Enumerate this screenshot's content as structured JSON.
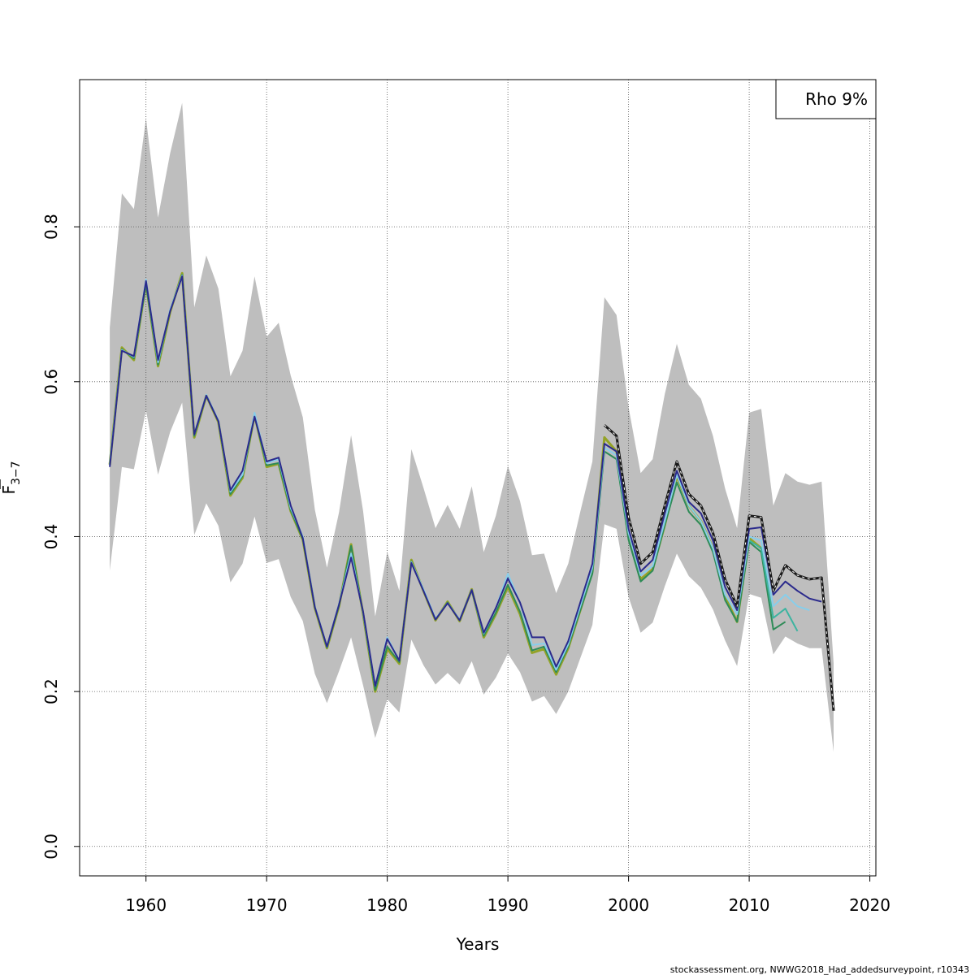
{
  "chart_data": {
    "type": "line",
    "xlabel": "Years",
    "ylabel_main": "F",
    "ylabel_sub": "3−7",
    "xlim": [
      1954.5,
      2020.5
    ],
    "ylim": [
      -0.038,
      0.99
    ],
    "xticks": [
      1960,
      1970,
      1980,
      1990,
      2000,
      2010,
      2020
    ],
    "yticks": [
      0.0,
      0.2,
      0.4,
      0.6,
      0.8
    ],
    "ytick_labels": [
      "0.0",
      "0.2",
      "0.4",
      "0.6",
      "0.8"
    ],
    "grid": true,
    "legend": {
      "placement": "top-right",
      "text": "Rho 9%"
    },
    "footer": "stockassessment.org, NWWG2018_Had_addedsurveypoint, r10343",
    "band": {
      "color": "#bebebe",
      "x": [
        1957,
        1958,
        1959,
        1960,
        1961,
        1962,
        1963,
        1964,
        1965,
        1966,
        1967,
        1968,
        1969,
        1970,
        1971,
        1972,
        1973,
        1974,
        1975,
        1976,
        1977,
        1978,
        1979,
        1980,
        1981,
        1982,
        1983,
        1984,
        1985,
        1986,
        1987,
        1988,
        1989,
        1990,
        1991,
        1992,
        1993,
        1994,
        1995,
        1996,
        1997,
        1998,
        1999,
        2000,
        2001,
        2002,
        2003,
        2004,
        2005,
        2006,
        2007,
        2008,
        2009,
        2010,
        2011,
        2012,
        2013,
        2014,
        2015,
        2016,
        2017
      ],
      "upper": [
        0.67,
        0.843,
        0.823,
        0.94,
        0.812,
        0.895,
        0.96,
        0.696,
        0.763,
        0.72,
        0.607,
        0.64,
        0.736,
        0.658,
        0.676,
        0.608,
        0.554,
        0.435,
        0.36,
        0.431,
        0.531,
        0.433,
        0.297,
        0.38,
        0.33,
        0.513,
        0.463,
        0.411,
        0.441,
        0.41,
        0.465,
        0.38,
        0.427,
        0.491,
        0.446,
        0.376,
        0.378,
        0.327,
        0.365,
        0.432,
        0.497,
        0.709,
        0.686,
        0.567,
        0.482,
        0.5,
        0.584,
        0.649,
        0.596,
        0.578,
        0.53,
        0.462,
        0.411,
        0.56,
        0.565,
        0.44,
        0.482,
        0.471,
        0.467,
        0.471,
        0.236
      ],
      "lower": [
        0.356,
        0.49,
        0.487,
        0.563,
        0.48,
        0.535,
        0.573,
        0.402,
        0.443,
        0.414,
        0.341,
        0.365,
        0.426,
        0.366,
        0.371,
        0.322,
        0.291,
        0.223,
        0.185,
        0.226,
        0.27,
        0.208,
        0.14,
        0.19,
        0.173,
        0.267,
        0.234,
        0.209,
        0.224,
        0.209,
        0.239,
        0.196,
        0.218,
        0.249,
        0.225,
        0.187,
        0.194,
        0.171,
        0.2,
        0.243,
        0.286,
        0.416,
        0.41,
        0.322,
        0.276,
        0.289,
        0.336,
        0.378,
        0.349,
        0.334,
        0.306,
        0.266,
        0.233,
        0.326,
        0.321,
        0.248,
        0.271,
        0.262,
        0.256,
        0.256,
        0.122
      ]
    },
    "series": [
      {
        "color": "#94a327",
        "width": 3,
        "dashed": false,
        "x": [
          1957,
          1958,
          1959,
          1960,
          1961,
          1962,
          1963,
          1964,
          1965,
          1966,
          1967,
          1968,
          1969,
          1970,
          1971,
          1972,
          1973,
          1974,
          1975,
          1976,
          1977,
          1978,
          1979,
          1980,
          1981,
          1982,
          1983,
          1984,
          1985,
          1986,
          1987,
          1988,
          1989,
          1990,
          1991,
          1992,
          1993,
          1994,
          1995,
          1996,
          1997,
          1998,
          1999,
          2000,
          2001,
          2002,
          2003,
          2004,
          2005,
          2006,
          2007,
          2008,
          2009,
          2010,
          2011
        ],
        "values": [
          0.493,
          0.644,
          0.628,
          0.727,
          0.62,
          0.69,
          0.74,
          0.528,
          0.582,
          0.548,
          0.453,
          0.476,
          0.557,
          0.49,
          0.494,
          0.433,
          0.396,
          0.308,
          0.256,
          0.31,
          0.39,
          0.3,
          0.2,
          0.255,
          0.236,
          0.37,
          0.33,
          0.292,
          0.316,
          0.291,
          0.332,
          0.27,
          0.3,
          0.335,
          0.3,
          0.25,
          0.255,
          0.222,
          0.256,
          0.305,
          0.355,
          0.528,
          0.51,
          0.4,
          0.345,
          0.358,
          0.415,
          0.478,
          0.44,
          0.42,
          0.385,
          0.322,
          0.29,
          0.398,
          0.385
        ]
      },
      {
        "color": "#2e8b57",
        "width": 2,
        "dashed": false,
        "x": [
          1957,
          1958,
          1959,
          1960,
          1961,
          1962,
          1963,
          1964,
          1965,
          1966,
          1967,
          1968,
          1969,
          1970,
          1971,
          1972,
          1973,
          1974,
          1975,
          1976,
          1977,
          1978,
          1979,
          1980,
          1981,
          1982,
          1983,
          1984,
          1985,
          1986,
          1987,
          1988,
          1989,
          1990,
          1991,
          1992,
          1993,
          1994,
          1995,
          1996,
          1997,
          1998,
          1999,
          2000,
          2001,
          2002,
          2003,
          2004,
          2005,
          2006,
          2007,
          2008,
          2009,
          2010,
          2011,
          2012,
          2013
        ],
        "values": [
          0.493,
          0.642,
          0.63,
          0.726,
          0.622,
          0.692,
          0.738,
          0.53,
          0.582,
          0.549,
          0.455,
          0.478,
          0.556,
          0.492,
          0.495,
          0.434,
          0.397,
          0.309,
          0.257,
          0.311,
          0.388,
          0.301,
          0.202,
          0.258,
          0.238,
          0.368,
          0.331,
          0.293,
          0.315,
          0.292,
          0.331,
          0.272,
          0.302,
          0.338,
          0.303,
          0.253,
          0.258,
          0.225,
          0.258,
          0.305,
          0.352,
          0.51,
          0.5,
          0.396,
          0.342,
          0.356,
          0.415,
          0.47,
          0.432,
          0.415,
          0.38,
          0.318,
          0.29,
          0.393,
          0.38,
          0.28,
          0.29
        ]
      },
      {
        "color": "#3cb4a0",
        "width": 2,
        "dashed": false,
        "x": [
          2010,
          2011,
          2012,
          2013,
          2014
        ],
        "values": [
          0.395,
          0.385,
          0.295,
          0.307,
          0.278
        ]
      },
      {
        "color": "#87ceeb",
        "width": 2,
        "dashed": false,
        "x": [
          1957,
          1958,
          1959,
          1960,
          1961,
          1962,
          1963,
          1964,
          1965,
          1966,
          1967,
          1968,
          1969,
          1970,
          1971,
          1972,
          1973,
          1974,
          1975,
          1976,
          1977,
          1978,
          1979,
          1980,
          1981,
          1982,
          1983,
          1984,
          1985,
          1986,
          1987,
          1988,
          1989,
          1990,
          1991,
          1992,
          1993,
          1994,
          1995,
          1996,
          1997,
          1998,
          1999,
          2000,
          2001,
          2002,
          2003,
          2004,
          2005,
          2006,
          2007,
          2008,
          2009,
          2010,
          2011,
          2012,
          2013,
          2014,
          2015
        ],
        "values": [
          0.493,
          0.641,
          0.632,
          0.732,
          0.625,
          0.693,
          0.737,
          0.532,
          0.583,
          0.55,
          0.458,
          0.48,
          0.56,
          0.495,
          0.5,
          0.437,
          0.4,
          0.31,
          0.258,
          0.313,
          0.378,
          0.302,
          0.207,
          0.27,
          0.24,
          0.367,
          0.332,
          0.294,
          0.314,
          0.293,
          0.331,
          0.275,
          0.308,
          0.352,
          0.315,
          0.26,
          0.262,
          0.228,
          0.261,
          0.31,
          0.36,
          0.515,
          0.505,
          0.405,
          0.35,
          0.362,
          0.42,
          0.48,
          0.44,
          0.42,
          0.385,
          0.325,
          0.3,
          0.4,
          0.395,
          0.31,
          0.325,
          0.31,
          0.305
        ]
      },
      {
        "color": "#2b2a8c",
        "width": 2,
        "dashed": false,
        "x": [
          1957,
          1958,
          1959,
          1960,
          1961,
          1962,
          1963,
          1964,
          1965,
          1966,
          1967,
          1968,
          1969,
          1970,
          1971,
          1972,
          1973,
          1974,
          1975,
          1976,
          1977,
          1978,
          1979,
          1980,
          1981,
          1982,
          1983,
          1984,
          1985,
          1986,
          1987,
          1988,
          1989,
          1990,
          1991,
          1992,
          1993,
          1994,
          1995,
          1996,
          1997,
          1998,
          1999,
          2000,
          2001,
          2002,
          2003,
          2004,
          2005,
          2006,
          2007,
          2008,
          2009,
          2010,
          2011,
          2012,
          2013,
          2014,
          2015,
          2016
        ],
        "values": [
          0.49,
          0.64,
          0.633,
          0.73,
          0.628,
          0.691,
          0.736,
          0.532,
          0.582,
          0.549,
          0.46,
          0.485,
          0.555,
          0.497,
          0.502,
          0.44,
          0.398,
          0.309,
          0.258,
          0.312,
          0.373,
          0.303,
          0.207,
          0.268,
          0.24,
          0.366,
          0.33,
          0.293,
          0.314,
          0.292,
          0.331,
          0.276,
          0.308,
          0.346,
          0.315,
          0.27,
          0.27,
          0.232,
          0.265,
          0.315,
          0.365,
          0.52,
          0.51,
          0.41,
          0.355,
          0.37,
          0.43,
          0.485,
          0.445,
          0.43,
          0.395,
          0.335,
          0.305,
          0.41,
          0.412,
          0.325,
          0.342,
          0.33,
          0.32,
          0.316
        ]
      },
      {
        "color": "#1a1a1a",
        "width": 3,
        "dashed": false,
        "x": [
          1998,
          1999,
          2000,
          2001,
          2002,
          2003,
          2004,
          2005,
          2006,
          2007,
          2008,
          2009,
          2010,
          2011,
          2012,
          2013,
          2014,
          2015,
          2016,
          2017
        ],
        "values": [
          0.544,
          0.53,
          0.425,
          0.365,
          0.38,
          0.44,
          0.497,
          0.455,
          0.44,
          0.405,
          0.345,
          0.31,
          0.427,
          0.425,
          0.33,
          0.363,
          0.35,
          0.345,
          0.347,
          0.175
        ]
      },
      {
        "color": "#ffffff",
        "width": 1,
        "dashed": true,
        "x": [
          1998,
          1999,
          2000,
          2001,
          2002,
          2003,
          2004,
          2005,
          2006,
          2007,
          2008,
          2009,
          2010,
          2011,
          2012,
          2013,
          2014,
          2015,
          2016,
          2017
        ],
        "values": [
          0.544,
          0.53,
          0.425,
          0.365,
          0.38,
          0.44,
          0.497,
          0.455,
          0.44,
          0.405,
          0.345,
          0.31,
          0.427,
          0.425,
          0.33,
          0.363,
          0.35,
          0.345,
          0.347,
          0.175
        ]
      }
    ]
  }
}
